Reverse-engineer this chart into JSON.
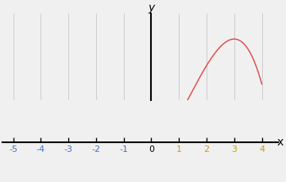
{
  "x_min": -5,
  "x_max": 4,
  "y_label": "y",
  "x_label": "x",
  "curve_color": "#e05050",
  "axis_color": "#000000",
  "grid_color": "#cccccc",
  "tick_color_neg": "#4472c4",
  "tick_color_pos": "#c8a000",
  "tick_color_zero": "#000000",
  "background_color": "#f0f0f0",
  "figsize": [
    3.6,
    2.29
  ],
  "dpi": 100,
  "k": 0.018
}
